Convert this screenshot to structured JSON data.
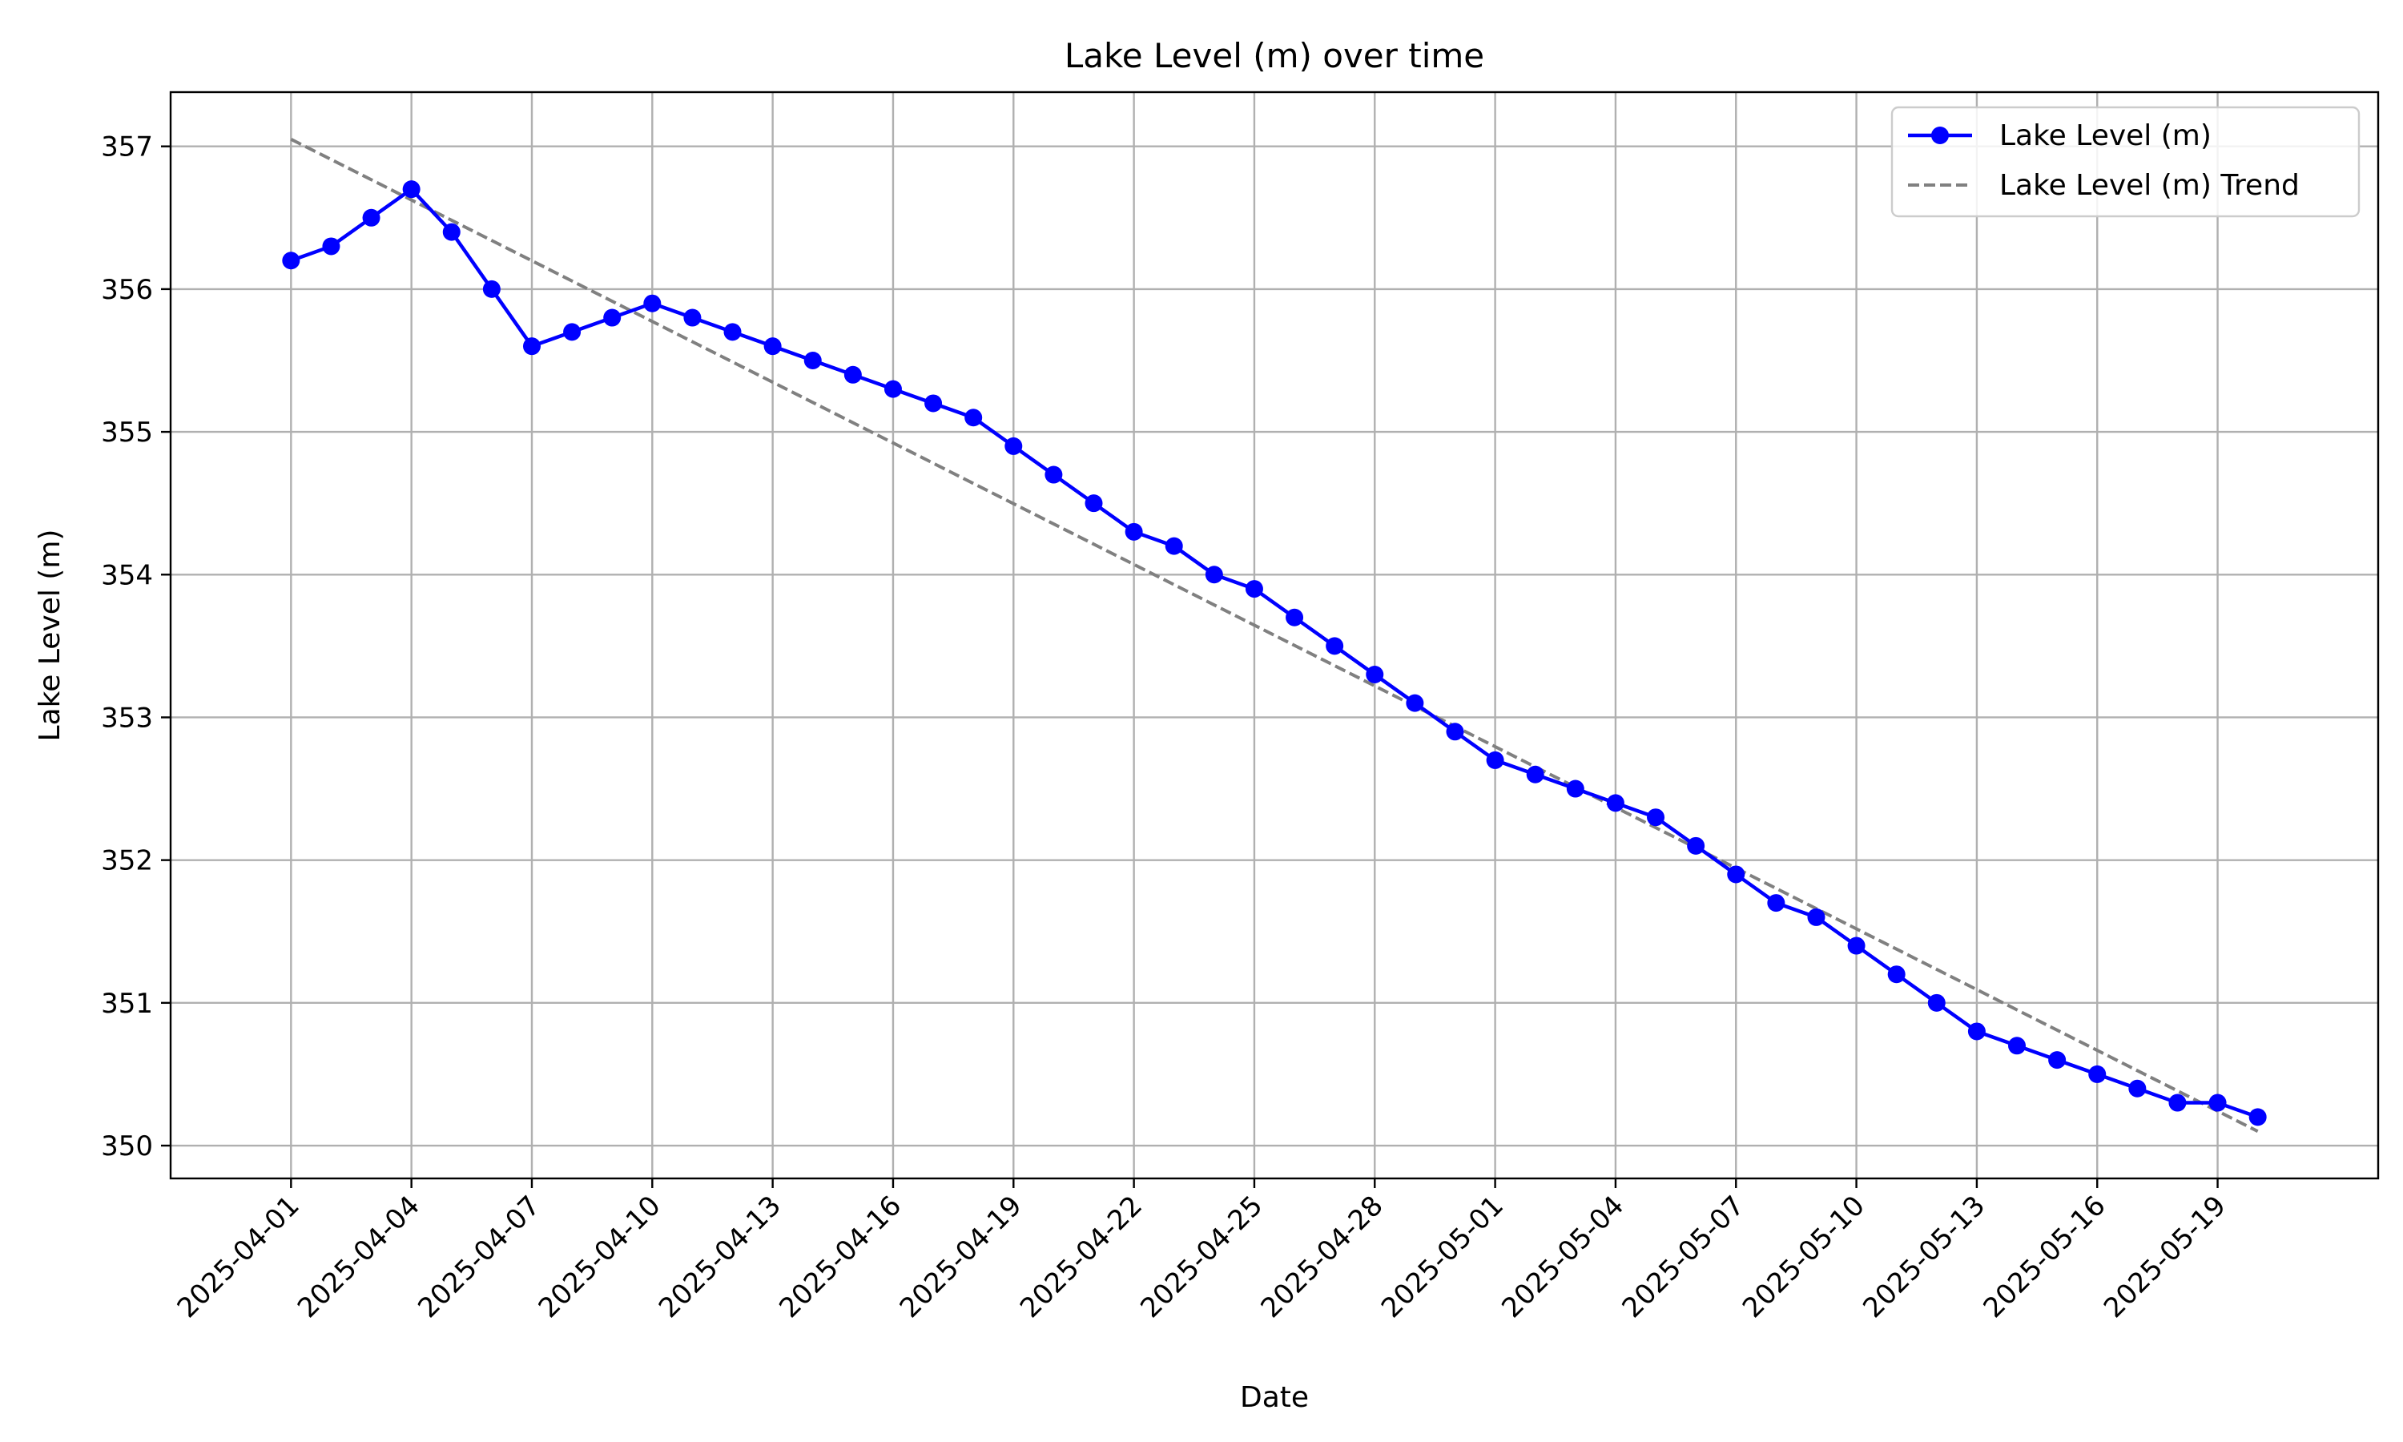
{
  "chart_data": {
    "type": "line",
    "title": "Lake Level (m) over time",
    "xlabel": "Date",
    "ylabel": "Lake Level (m)",
    "grid": true,
    "legend_position": "top-right",
    "x_tick_labels": [
      "2025-04-01",
      "2025-04-04",
      "2025-04-07",
      "2025-04-10",
      "2025-04-13",
      "2025-04-16",
      "2025-04-19",
      "2025-04-22",
      "2025-04-25",
      "2025-04-28",
      "2025-05-01",
      "2025-05-04",
      "2025-05-07",
      "2025-05-10",
      "2025-05-13",
      "2025-05-16",
      "2025-05-19"
    ],
    "y_ticks": [
      350,
      351,
      352,
      353,
      354,
      355,
      356,
      357
    ],
    "xlim": [
      "2025-03-29",
      "2025-05-23"
    ],
    "ylim": [
      349.77,
      357.38
    ],
    "x": [
      "2025-04-01",
      "2025-04-02",
      "2025-04-03",
      "2025-04-04",
      "2025-04-05",
      "2025-04-06",
      "2025-04-07",
      "2025-04-08",
      "2025-04-09",
      "2025-04-10",
      "2025-04-11",
      "2025-04-12",
      "2025-04-13",
      "2025-04-14",
      "2025-04-15",
      "2025-04-16",
      "2025-04-17",
      "2025-04-18",
      "2025-04-19",
      "2025-04-20",
      "2025-04-21",
      "2025-04-22",
      "2025-04-23",
      "2025-04-24",
      "2025-04-25",
      "2025-04-26",
      "2025-04-27",
      "2025-04-28",
      "2025-04-29",
      "2025-04-30",
      "2025-05-01",
      "2025-05-02",
      "2025-05-03",
      "2025-05-04",
      "2025-05-05",
      "2025-05-06",
      "2025-05-07",
      "2025-05-08",
      "2025-05-09",
      "2025-05-10",
      "2025-05-11",
      "2025-05-12",
      "2025-05-13",
      "2025-05-14",
      "2025-05-15",
      "2025-05-16",
      "2025-05-17",
      "2025-05-18",
      "2025-05-19",
      "2025-05-20"
    ],
    "series": [
      {
        "name": "Lake Level (m)",
        "color": "#0000ff",
        "marker": "circle",
        "values": [
          356.2,
          356.3,
          356.5,
          356.7,
          356.4,
          356.0,
          355.6,
          355.7,
          355.8,
          355.9,
          355.8,
          355.7,
          355.6,
          355.5,
          355.4,
          355.3,
          355.2,
          355.1,
          354.9,
          354.7,
          354.5,
          354.3,
          354.2,
          354.0,
          353.9,
          353.7,
          353.5,
          353.3,
          353.1,
          352.9,
          352.7,
          352.6,
          352.5,
          352.4,
          352.3,
          352.1,
          351.9,
          351.7,
          351.6,
          351.4,
          351.2,
          351.0,
          350.8,
          350.7,
          350.6,
          350.5,
          350.4,
          350.3,
          350.3,
          350.2
        ]
      },
      {
        "name": "Lake Level (m) Trend",
        "color": "#808080",
        "style": "dashed",
        "x": [
          "2025-04-01",
          "2025-05-20"
        ],
        "values": [
          357.05,
          350.1
        ]
      }
    ]
  }
}
